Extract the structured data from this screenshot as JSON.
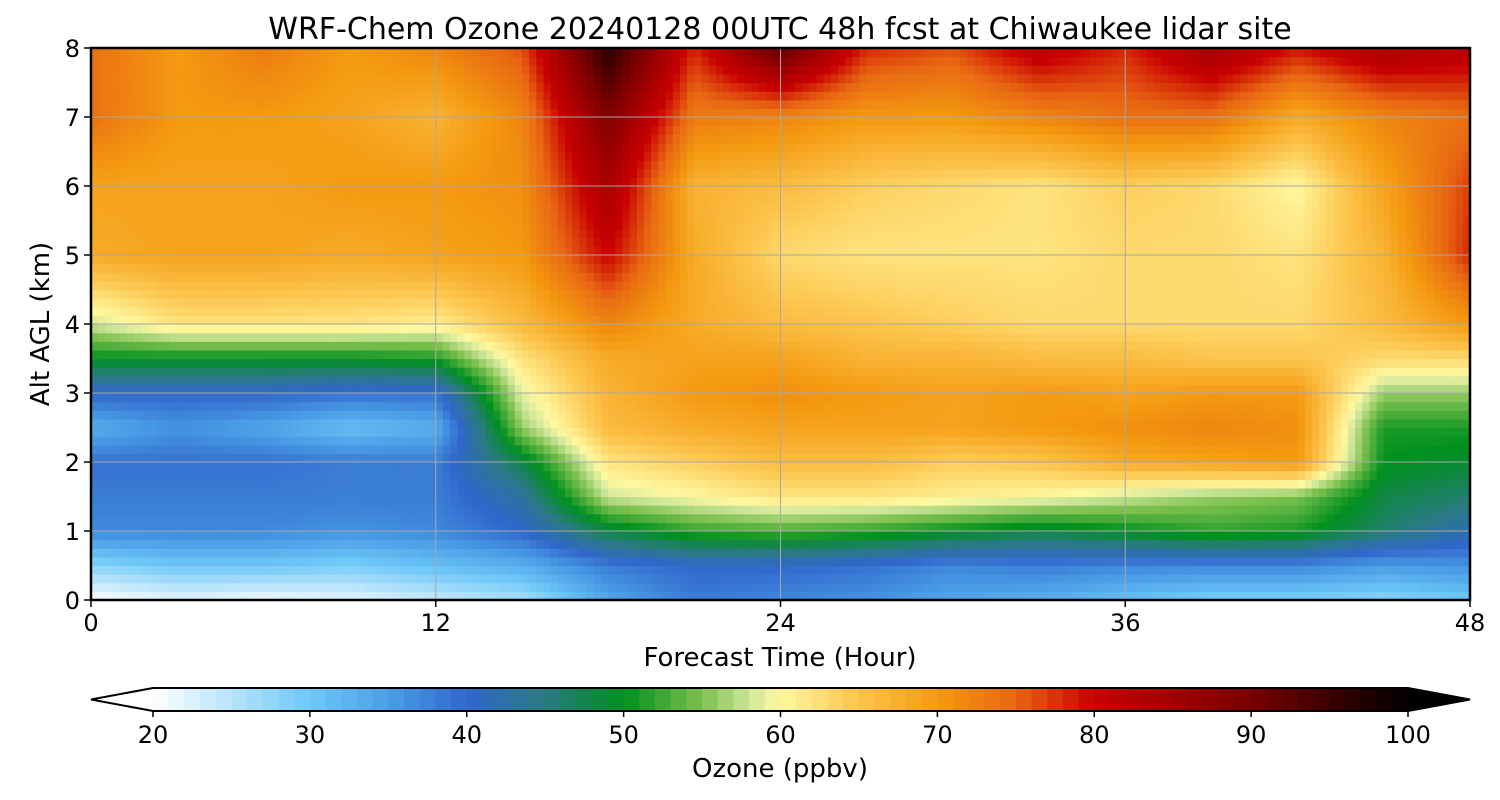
{
  "chart_data": {
    "type": "heatmap",
    "title": "WRF-Chem Ozone  20240128 00UTC 48h fcst at Chiwaukee lidar site",
    "xlabel": "Forecast Time (Hour)",
    "ylabel": "Alt AGL (km)",
    "xlim": [
      0,
      48
    ],
    "ylim": [
      0,
      8
    ],
    "xticks": [
      0,
      12,
      24,
      36,
      48
    ],
    "yticks": [
      0,
      1,
      2,
      3,
      4,
      5,
      6,
      7,
      8
    ],
    "grid": true,
    "x": [
      0,
      3,
      6,
      9,
      12,
      15,
      18,
      21,
      24,
      27,
      30,
      33,
      36,
      39,
      42,
      45,
      48
    ],
    "y": [
      0,
      0.5,
      1,
      1.5,
      2,
      2.5,
      3,
      3.5,
      4,
      5,
      6,
      7,
      8
    ],
    "z_units": "ppbv",
    "values": [
      [
        20,
        22,
        21,
        22,
        24,
        26,
        34,
        38,
        37,
        36,
        34,
        33,
        31,
        29,
        29,
        28,
        30
      ],
      [
        28,
        30,
        30,
        29,
        31,
        33,
        38,
        40,
        40,
        39,
        37,
        38,
        37,
        37,
        37,
        35,
        36
      ],
      [
        37,
        37,
        37,
        36,
        37,
        40,
        48,
        52,
        53,
        52,
        50,
        48,
        50,
        52,
        51,
        46,
        42
      ],
      [
        38,
        38,
        38,
        38,
        38,
        43,
        58,
        60,
        62,
        62,
        61,
        60,
        58,
        56,
        55,
        48,
        46
      ],
      [
        39,
        39,
        39,
        38,
        38,
        48,
        62,
        64,
        66,
        66,
        64,
        65,
        68,
        69,
        70,
        50,
        49
      ],
      [
        33,
        36,
        34,
        31,
        33,
        56,
        66,
        68,
        69,
        69,
        69,
        70,
        71,
        72,
        71,
        51,
        51
      ],
      [
        40,
        40,
        40,
        39,
        39,
        59,
        67,
        70,
        71,
        70,
        69,
        70,
        69,
        70,
        70,
        56,
        56
      ],
      [
        50,
        50,
        50,
        50,
        51,
        62,
        68,
        69,
        69,
        67,
        67,
        66,
        66,
        65,
        65,
        63,
        63
      ],
      [
        58,
        62,
        62,
        62,
        61,
        66,
        72,
        68,
        66,
        65,
        64,
        63,
        63,
        63,
        63,
        66,
        70
      ],
      [
        68,
        69,
        69,
        68,
        69,
        70,
        80,
        68,
        63,
        62,
        62,
        62,
        63,
        63,
        62,
        67,
        78
      ],
      [
        69,
        69,
        69,
        70,
        70,
        71,
        84,
        67,
        66,
        64,
        63,
        62,
        64,
        63,
        60,
        69,
        77
      ],
      [
        74,
        70,
        70,
        69,
        67,
        72,
        89,
        73,
        72,
        70,
        70,
        72,
        74,
        74,
        68,
        72,
        74
      ],
      [
        74,
        70,
        73,
        70,
        72,
        76,
        97,
        78,
        92,
        78,
        76,
        82,
        78,
        85,
        79,
        84,
        82
      ]
    ],
    "colorbar": {
      "label": "Ozone  (ppbv)",
      "min": 20,
      "max": 100,
      "ticks": [
        20,
        30,
        40,
        50,
        60,
        70,
        80,
        90,
        100
      ],
      "extend": "both",
      "colormap": [
        {
          "v": 20,
          "c": "#ffffff"
        },
        {
          "v": 30,
          "c": "#6ec8f8"
        },
        {
          "v": 35,
          "c": "#4a9ee6"
        },
        {
          "v": 40,
          "c": "#3067cc"
        },
        {
          "v": 45,
          "c": "#2a7a82"
        },
        {
          "v": 50,
          "c": "#00901e"
        },
        {
          "v": 55,
          "c": "#7cc04e"
        },
        {
          "v": 58,
          "c": "#cde69a"
        },
        {
          "v": 60,
          "c": "#fff8a0"
        },
        {
          "v": 65,
          "c": "#fcc44c"
        },
        {
          "v": 70,
          "c": "#f49a10"
        },
        {
          "v": 75,
          "c": "#e86612"
        },
        {
          "v": 80,
          "c": "#c80000"
        },
        {
          "v": 90,
          "c": "#780000"
        },
        {
          "v": 100,
          "c": "#000000"
        }
      ]
    }
  }
}
